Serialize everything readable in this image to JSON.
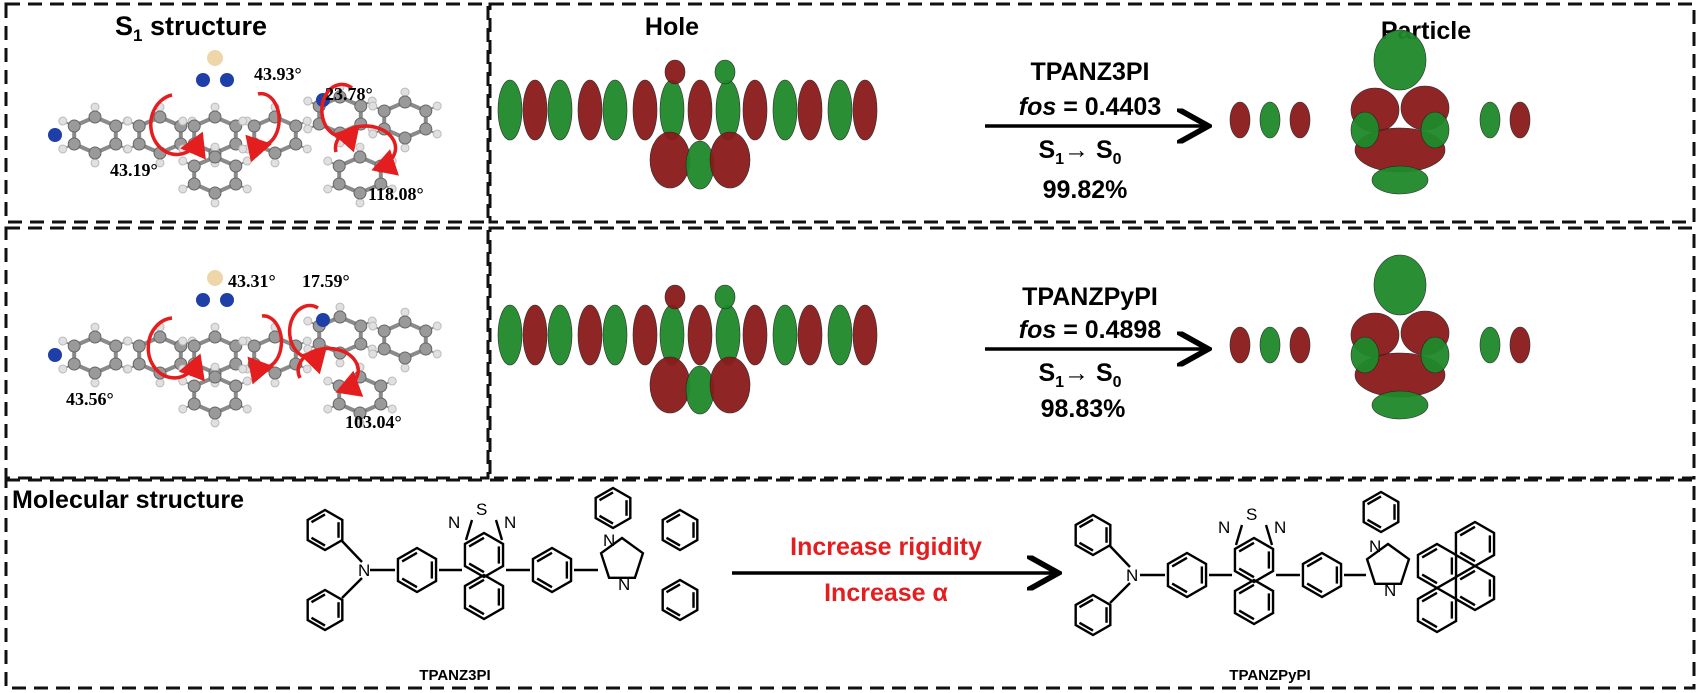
{
  "colors": {
    "accent_red": "#e41e1e",
    "lobe_red": "#8b1a1a",
    "lobe_green": "#1f8a2a",
    "atom_carbon": "#9a9a9a",
    "atom_hydrogen": "#e0e0e0",
    "atom_nitrogen": "#1f3fa8",
    "atom_sulfur": "#efd6a8"
  },
  "row1": {
    "structure_title": "S",
    "structure_title_sub": "1",
    "structure_title_rest": " structure",
    "angles": [
      "43.93°",
      "23.78°",
      "43.19°",
      "118.08°"
    ],
    "hole_label": "Hole",
    "particle_label": "Particle",
    "compound": "TPANZ3PI",
    "fos_label": "fos",
    "fos_value": " = 0.4403",
    "transition_s": "S",
    "transition_sub1": "1",
    "transition_arrow": "→ S",
    "transition_sub0": "0",
    "percent": "99.82%"
  },
  "row2": {
    "angles": [
      "43.31°",
      "17.59°",
      "43.56°",
      "103.04°"
    ],
    "compound": "TPANZPyPI",
    "fos_label": "fos",
    "fos_value": " = 0.4898",
    "transition_s": "S",
    "transition_sub1": "1",
    "transition_arrow": "→ S",
    "transition_sub0": "0",
    "percent": "98.83%"
  },
  "molecular": {
    "title": "Molecular structure",
    "left_compound": "TPANZ3PI",
    "right_compound": "TPANZPyPI",
    "arrow_top": "Increase rigidity",
    "arrow_bottom": "Increase α",
    "atom_N": "N",
    "atom_S": "S"
  }
}
